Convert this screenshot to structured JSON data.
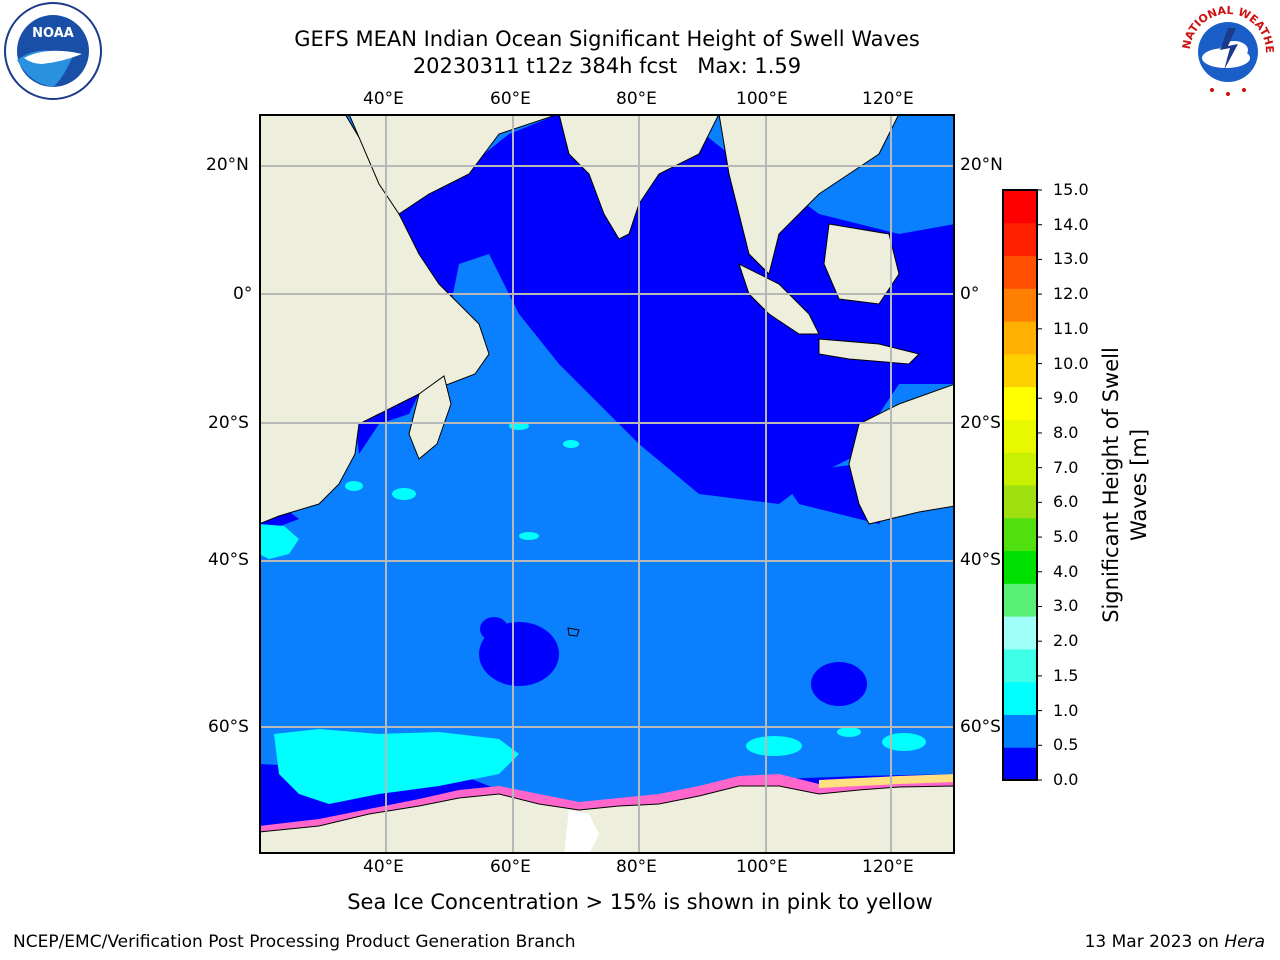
{
  "title": "GEFS MEAN Indian Ocean Significant Height of Swell Waves",
  "subtitle_line": "20230311 t12z 384h fcst   Max: 1.59",
  "note": "Sea Ice Concentration > 15% is shown in pink to yellow",
  "footer_left": "NCEP/EMC/Verification Post Processing Product Generation Branch",
  "footer_date": "13 Mar 2023 on ",
  "footer_machine": "Hera",
  "logos": {
    "left": "NOAA",
    "right_text": "NATIONAL WEATHER SERVICE"
  },
  "map": {
    "lon_ticks": [
      "40°E",
      "60°E",
      "80°E",
      "100°E",
      "120°E"
    ],
    "lat_ticks_left": [
      "20°N",
      "0°",
      "20°S",
      "40°S",
      "60°S"
    ],
    "lat_ticks_right": [
      "20°N",
      "0°",
      "20°S",
      "40°S",
      "60°S"
    ]
  },
  "colorbar": {
    "title_line1": "Significant Height of Swell",
    "title_line2": "Waves [m]",
    "ticks": [
      "0.0",
      "0.5",
      "1.0",
      "1.5",
      "2.0",
      "3.0",
      "4.0",
      "5.0",
      "6.0",
      "7.0",
      "8.0",
      "9.0",
      "10.0",
      "11.0",
      "12.0",
      "13.0",
      "14.0",
      "15.0"
    ],
    "colors": [
      "#0000ff",
      "#0080ff",
      "#00ffff",
      "#40ffe8",
      "#a0fff8",
      "#5af078",
      "#00e000",
      "#50e010",
      "#a0e010",
      "#c8f000",
      "#e8f800",
      "#ffff00",
      "#ffd000",
      "#ffb000",
      "#ff8000",
      "#ff5000",
      "#ff2000",
      "#ff0000"
    ]
  },
  "colors": {
    "land": "#eeeedc",
    "ocean": "#0a80ff",
    "shelf": "#0000ff",
    "swell_high": "#00ffff",
    "ice": "#ff66cc",
    "grid": "#b8b8b8"
  }
}
